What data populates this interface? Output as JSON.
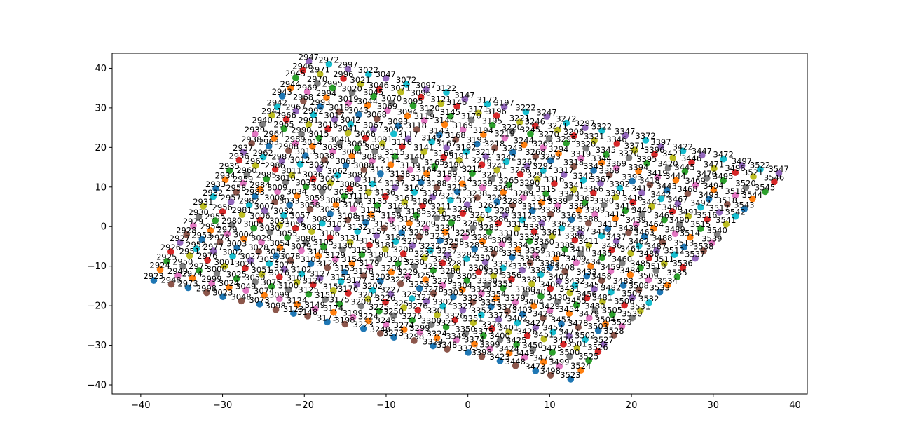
{
  "chart_data": {
    "type": "scatter",
    "title": "",
    "xlabel": "",
    "ylabel": "",
    "xlim": [
      -43.5,
      41.5
    ],
    "ylim": [
      -42.3,
      43.8
    ],
    "xticks": [
      -40,
      -30,
      -20,
      -10,
      0,
      10,
      20,
      30,
      40
    ],
    "yticks": [
      -40,
      -30,
      -20,
      -10,
      0,
      10,
      20,
      30,
      40
    ],
    "grid": false,
    "legend": "none",
    "point_labels": "id",
    "cycle_colors": [
      "#1f77b4",
      "#ff7f0e",
      "#2ca02c",
      "#d62728",
      "#9467bd",
      "#8c564b",
      "#e377c2",
      "#7f7f7f",
      "#bcbd22",
      "#17becf"
    ],
    "grid_structure": {
      "first_id": 2923,
      "rows": 25,
      "cols": 25,
      "corner_first_id": [
        -38.5,
        -13.5
      ],
      "corner_last_id_in_first_row": [
        -19.5,
        42.0
      ],
      "corner_first_id_of_last_row": [
        12.5,
        -38.3
      ],
      "corner_last_id": [
        38.3,
        13.3
      ]
    }
  }
}
